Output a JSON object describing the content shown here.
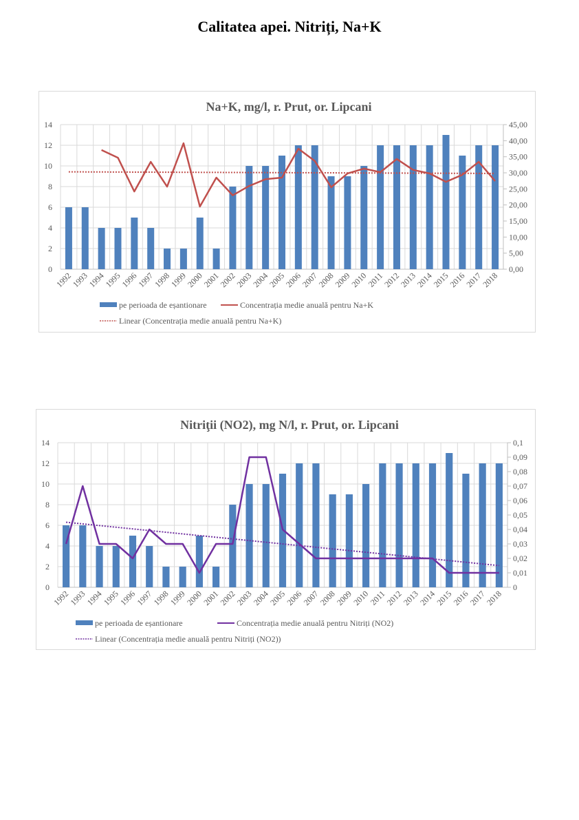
{
  "page": {
    "title": "Calitatea apei. Nitriți, Na+K"
  },
  "chart_data": [
    {
      "type": "bar",
      "title": "Na+K, mg/l, r. Prut, or. Lipcani",
      "categories": [
        "1992",
        "1993",
        "1994",
        "1995",
        "1996",
        "1997",
        "1998",
        "1999",
        "2000",
        "2001",
        "2002",
        "2003",
        "2004",
        "2005",
        "2006",
        "2007",
        "2008",
        "2009",
        "2010",
        "2011",
        "2012",
        "2013",
        "2014",
        "2015",
        "2016",
        "2017",
        "2018"
      ],
      "xlabel": "",
      "ylabel": "",
      "ylim": [
        0,
        14
      ],
      "y_ticks": [
        "0",
        "2",
        "4",
        "6",
        "8",
        "10",
        "12",
        "14"
      ],
      "y2lim": [
        0,
        45
      ],
      "y2_ticks": [
        "0,00",
        "5,00",
        "10,00",
        "15,00",
        "20,00",
        "25,00",
        "30,00",
        "35,00",
        "40,00",
        "45,00"
      ],
      "grid": true,
      "legend_position": "bottom",
      "series": [
        {
          "name": "pe perioada de eșantionare",
          "type": "bar",
          "axis": "primary",
          "color": "#4f81bd",
          "values": [
            6,
            6,
            4,
            4,
            5,
            4,
            2,
            2,
            5,
            2,
            8,
            10,
            10,
            11,
            12,
            12,
            9,
            9,
            10,
            12,
            12,
            12,
            12,
            13,
            11,
            12,
            12
          ]
        },
        {
          "name": "Concentrația medie anuală pentru Na+K",
          "type": "line",
          "axis": "secondary",
          "color": "#c0504d",
          "values": [
            null,
            null,
            37.1,
            34.7,
            24.2,
            33.4,
            25.7,
            39.2,
            19.5,
            28.5,
            23.0,
            25.9,
            28.0,
            28.5,
            37.5,
            33.7,
            25.5,
            29.8,
            31.3,
            30.2,
            34.3,
            30.9,
            29.8,
            27.2,
            29.4,
            33.4,
            27.4
          ]
        },
        {
          "name": "Linear (Concentrația medie anuală pentru Na+K)",
          "type": "trendline",
          "axis": "secondary",
          "color": "#c0504d",
          "start": 30.3,
          "end": 29.8
        }
      ]
    },
    {
      "type": "bar",
      "title": "Nitriţii (NO2), mg N/l, r. Prut, or. Lipcani",
      "categories": [
        "1992",
        "1993",
        "1994",
        "1995",
        "1996",
        "1997",
        "1998",
        "1999",
        "2000",
        "2001",
        "2002",
        "2003",
        "2004",
        "2005",
        "2006",
        "2007",
        "2008",
        "2009",
        "2010",
        "2011",
        "2012",
        "2013",
        "2014",
        "2015",
        "2016",
        "2017",
        "2018"
      ],
      "xlabel": "",
      "ylabel": "",
      "ylim": [
        0,
        14
      ],
      "y_ticks": [
        "0",
        "2",
        "4",
        "6",
        "8",
        "10",
        "12",
        "14"
      ],
      "y2lim": [
        0,
        0.1
      ],
      "y2_ticks": [
        "0",
        "0,01",
        "0,02",
        "0,03",
        "0,04",
        "0,05",
        "0,06",
        "0,07",
        "0,08",
        "0,09",
        "0,1"
      ],
      "grid": true,
      "legend_position": "bottom",
      "series": [
        {
          "name": "pe perioada de eșantionare",
          "type": "bar",
          "axis": "primary",
          "color": "#4f81bd",
          "values": [
            6,
            6,
            4,
            4,
            5,
            4,
            2,
            2,
            5,
            2,
            8,
            10,
            10,
            11,
            12,
            12,
            9,
            9,
            10,
            12,
            12,
            12,
            12,
            13,
            11,
            12,
            12
          ]
        },
        {
          "name": "Concentrația medie anuală pentru Nitriți (NO2)",
          "type": "line",
          "axis": "secondary",
          "color": "#7030a0",
          "values": [
            0.03,
            0.07,
            0.03,
            0.03,
            0.02,
            0.04,
            0.03,
            0.03,
            0.01,
            0.03,
            0.03,
            0.09,
            0.09,
            0.04,
            0.03,
            0.02,
            0.02,
            0.02,
            0.02,
            0.02,
            0.02,
            0.02,
            0.02,
            0.01,
            0.01,
            0.01,
            0.01
          ]
        },
        {
          "name": "Linear (Concentrația medie anuală pentru Nitriți (NO2))",
          "type": "trendline",
          "axis": "secondary",
          "color": "#7030a0",
          "start": 0.045,
          "end": 0.015
        }
      ]
    }
  ]
}
